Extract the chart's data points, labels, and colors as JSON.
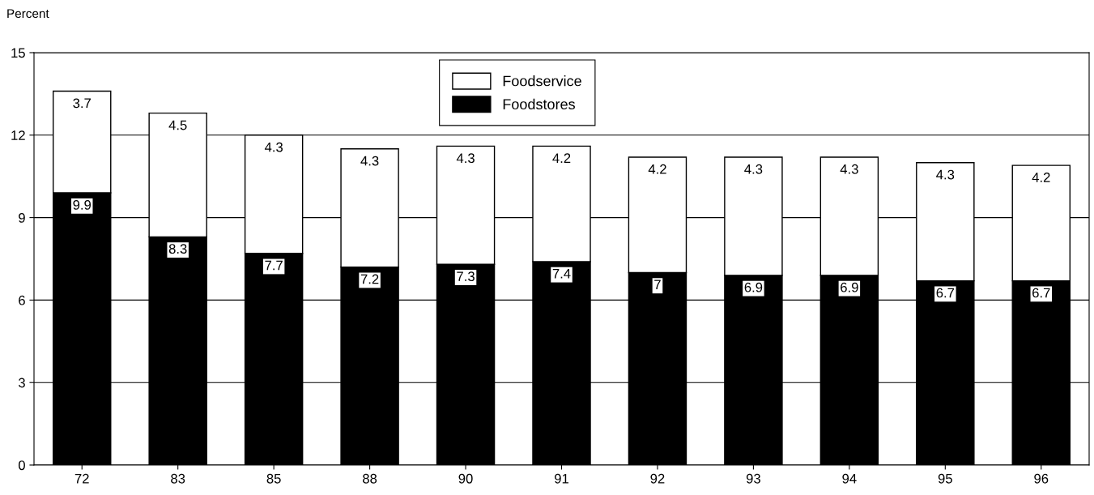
{
  "chart_data": {
    "type": "bar",
    "stacked": true,
    "ylabel": "Percent",
    "categories": [
      "72",
      "83",
      "85",
      "88",
      "90",
      "91",
      "92",
      "93",
      "94",
      "95",
      "96"
    ],
    "series": [
      {
        "name": "Foodstores",
        "color": "#000000",
        "values": [
          9.9,
          8.3,
          7.7,
          7.2,
          7.3,
          7.4,
          7,
          6.9,
          6.9,
          6.7,
          6.7
        ]
      },
      {
        "name": "Foodservice",
        "color": "#ffffff",
        "values": [
          3.7,
          4.5,
          4.3,
          4.3,
          4.3,
          4.2,
          4.2,
          4.3,
          4.3,
          4.3,
          4.2
        ]
      }
    ],
    "ylim": [
      0,
      15
    ],
    "yticks": [
      0,
      3,
      6,
      9,
      12,
      15
    ],
    "grid": "y",
    "legend": "top",
    "data_labels": true
  }
}
